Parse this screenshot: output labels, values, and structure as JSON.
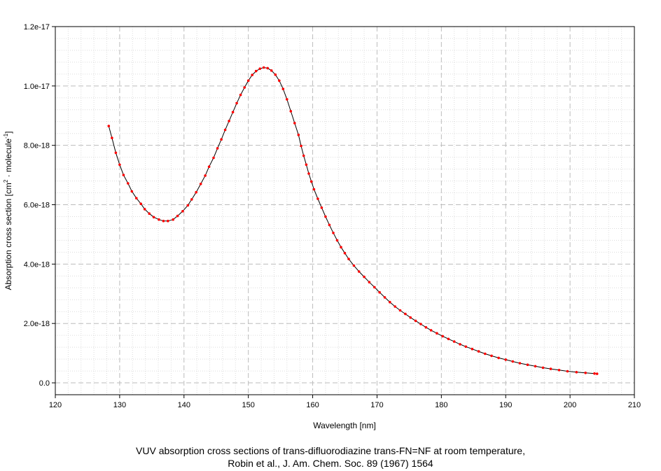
{
  "chart_data": {
    "type": "line",
    "title": "",
    "xlabel": "Wavelength [nm]",
    "ylabel_parts": {
      "prefix": "Absorption cross section [cm",
      "sup1": "2",
      "middle": " · molecule",
      "sup2": "-1",
      "suffix": "]"
    },
    "xlim": [
      120,
      210
    ],
    "ylim": [
      -4e-19,
      1.2e-17
    ],
    "x_ticks": [
      120,
      130,
      140,
      150,
      160,
      170,
      180,
      190,
      200,
      210
    ],
    "x_tick_labels": [
      "120",
      "130",
      "140",
      "150",
      "160",
      "170",
      "180",
      "190",
      "200",
      "210"
    ],
    "y_ticks": [
      0,
      2e-18,
      4e-18,
      6e-18,
      8e-18,
      1e-17,
      1.2e-17
    ],
    "y_tick_labels": [
      "0.0",
      "2.0e-18",
      "4.0e-18",
      "6.0e-18",
      "8.0e-18",
      "1.0e-17",
      "1.2e-17"
    ],
    "grid": true,
    "legend": "none",
    "line_color": "#000000",
    "marker_color": "#ff0000",
    "series": [
      {
        "x": [
          128.3,
          128.8,
          129.4,
          130.0,
          130.6,
          131.3,
          131.9,
          132.6,
          133.3,
          133.9,
          134.6,
          135.3,
          136.1,
          136.8,
          137.5,
          138.3,
          139.0,
          139.8,
          140.6,
          141.2,
          141.9,
          142.6,
          143.3,
          143.9,
          144.6,
          145.2,
          145.8,
          146.4,
          147.0,
          147.6,
          148.2,
          148.8,
          149.4,
          150.0,
          150.6,
          151.2,
          151.8,
          152.4,
          153.0,
          153.6,
          154.2,
          154.8,
          155.4,
          156.0,
          156.6,
          157.2,
          157.8,
          158.2,
          158.6,
          159.0,
          159.4,
          159.8,
          160.2,
          160.8,
          161.4,
          162.0,
          162.6,
          163.2,
          163.8,
          164.4,
          165.0,
          165.6,
          166.4,
          167.2,
          168.0,
          168.8,
          169.6,
          170.4,
          171.2,
          172.0,
          172.8,
          173.6,
          174.4,
          175.2,
          176.0,
          176.8,
          177.6,
          178.4,
          179.3,
          180.2,
          181.1,
          182.0,
          182.9,
          183.8,
          184.8,
          185.8,
          186.8,
          187.8,
          188.9,
          190.0,
          191.1,
          192.2,
          193.4,
          194.6,
          195.8,
          197.0,
          198.3,
          199.6,
          201.0,
          202.4,
          203.8,
          204.2
        ],
        "y": [
          8.65e-18,
          8.25e-18,
          7.75e-18,
          7.35e-18,
          7e-18,
          6.72e-18,
          6.45e-18,
          6.22e-18,
          6.03e-18,
          5.85e-18,
          5.7e-18,
          5.58e-18,
          5.5e-18,
          5.45e-18,
          5.45e-18,
          5.5e-18,
          5.62e-18,
          5.78e-18,
          5.98e-18,
          6.18e-18,
          6.42e-18,
          6.7e-18,
          6.98e-18,
          7.28e-18,
          7.58e-18,
          7.9e-18,
          8.2e-18,
          8.52e-18,
          8.82e-18,
          9.12e-18,
          9.42e-18,
          9.7e-18,
          9.95e-18,
          1.018e-17,
          1.037e-17,
          1.05e-17,
          1.058e-17,
          1.062e-17,
          1.06e-17,
          1.052e-17,
          1.038e-17,
          1.018e-17,
          9.9e-18,
          9.55e-18,
          9.15e-18,
          8.75e-18,
          8.35e-18,
          7.98e-18,
          7.65e-18,
          7.35e-18,
          7.05e-18,
          6.78e-18,
          6.52e-18,
          6.2e-18,
          5.9e-18,
          5.6e-18,
          5.32e-18,
          5.05e-18,
          4.8e-18,
          4.57e-18,
          4.37e-18,
          4.17e-18,
          3.95e-18,
          3.75e-18,
          3.57e-18,
          3.39e-18,
          3.22e-18,
          3.05e-18,
          2.88e-18,
          2.72e-18,
          2.57e-18,
          2.44e-18,
          2.32e-18,
          2.2e-18,
          2.09e-18,
          1.98e-18,
          1.87e-18,
          1.77e-18,
          1.67e-18,
          1.57e-18,
          1.48e-18,
          1.39e-18,
          1.3e-18,
          1.22e-18,
          1.14e-18,
          1.06e-18,
          9.8e-19,
          9.1e-19,
          8.4e-19,
          7.8e-19,
          7.2e-19,
          6.6e-19,
          6.1e-19,
          5.6e-19,
          5.1e-19,
          4.7e-19,
          4.3e-19,
          3.9e-19,
          3.6e-19,
          3.35e-19,
          3.15e-19,
          3.05e-19
        ]
      }
    ]
  },
  "caption": {
    "line1": "VUV absorption cross sections of trans-difluorodiazine trans-FN=NF at room temperature,",
    "line2": "Robin et al., J. Am. Chem. Soc. 89 (1967) 1564"
  }
}
